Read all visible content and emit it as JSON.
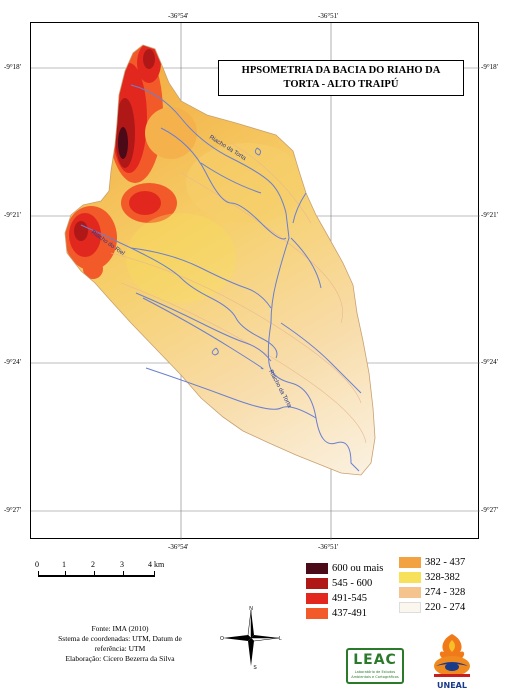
{
  "map": {
    "title_line1": "HPSOMETRIA DA BACIA DO RIAHO DA",
    "title_line2": "TORTA - ALTO TRAIPÚ",
    "coords": {
      "lon_top_left": "-36°54'",
      "lon_top_right": "-36°51'",
      "lon_bottom_left": "-36°54'",
      "lon_bottom_right": "-36°51'",
      "lat_left_1": "-9°18'",
      "lat_left_2": "-9°21'",
      "lat_left_3": "-9°24'",
      "lat_left_4": "-9°27'",
      "lat_right_1": "-9°18'",
      "lat_right_2": "-9°21'",
      "lat_right_3": "-9°24'",
      "lat_right_4": "-9°27'"
    },
    "river_labels": {
      "upper": "Riacho da Torta",
      "left": "Riacho do Riel",
      "lower": "Riacho da Torta"
    }
  },
  "scale": {
    "labels": [
      "0",
      "1",
      "2",
      "3",
      "4 km"
    ]
  },
  "legend": {
    "items": [
      {
        "label": "600 ou mais",
        "color": "#4a0a18"
      },
      {
        "label": "545 - 600",
        "color": "#b01818"
      },
      {
        "label": "491-545",
        "color": "#e2281e"
      },
      {
        "label": "437-491",
        "color": "#f25a2a"
      },
      {
        "label": "382 - 437",
        "color": "#f2a240"
      },
      {
        "label": "328-382",
        "color": "#f7e05a"
      },
      {
        "label": "274 - 328",
        "color": "#f5c48e"
      },
      {
        "label": "220 - 274",
        "color": "#fbf7ef"
      }
    ]
  },
  "credits": {
    "source": "Fonte: IMA (2010)",
    "system_1": "Sstema de coordenadas: UTM, Datum de",
    "system_2": "referência: UTM",
    "author": "Elaboração: Cícero Bezerra da Silva"
  },
  "compass": {
    "n": "N",
    "s": "S",
    "e": "L",
    "w": "O"
  },
  "logos": {
    "leac": "LEAC",
    "leac_sub": "Laboratório de Estudos Ambientais e Cartográficos",
    "uneal": "UNEAL"
  }
}
